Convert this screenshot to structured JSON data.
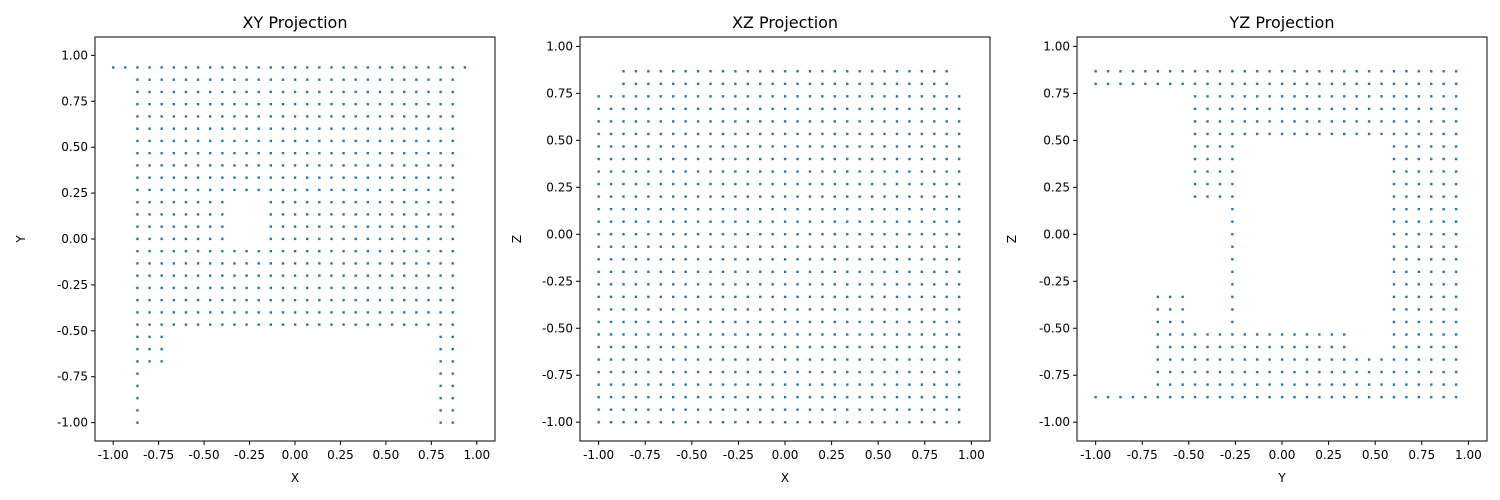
{
  "colors": {
    "marker": "#1f77b4",
    "axes": "#000000",
    "background": "#ffffff"
  },
  "chart_data": [
    {
      "type": "scatter",
      "title": "XY Projection",
      "xlabel": "X",
      "ylabel": "Y",
      "xlim": [
        -1.1,
        1.1
      ],
      "ylim": [
        -1.1,
        1.1
      ],
      "xticks": [
        "-1.00",
        "-0.75",
        "-0.50",
        "-0.25",
        "0.00",
        "0.25",
        "0.50",
        "0.75",
        "1.00"
      ],
      "yticks": [
        "-1.00",
        "-0.75",
        "-0.50",
        "-0.25",
        "0.00",
        "0.25",
        "0.50",
        "0.75",
        "1.00"
      ],
      "grid": false,
      "grid_spacing": 0.0667,
      "regions": [
        {
          "x": [
            -1.0,
            1.0
          ],
          "y": [
            0.87,
            1.0
          ]
        },
        {
          "x": [
            -0.87,
            0.87
          ],
          "y": [
            -0.53,
            0.87
          ]
        },
        {
          "x": [
            -0.93,
            -0.87
          ],
          "y": [
            -0.67,
            0.53
          ]
        },
        {
          "x": [
            0.87,
            0.93
          ],
          "y": [
            -0.93,
            0.53
          ]
        },
        {
          "x": [
            -0.87,
            -0.8
          ],
          "y": [
            -1.0,
            -0.53
          ]
        },
        {
          "x": [
            0.8,
            0.87
          ],
          "y": [
            -1.0,
            -0.53
          ]
        },
        {
          "x": [
            -0.8,
            -0.67
          ],
          "y": [
            -0.67,
            -0.53
          ]
        }
      ],
      "holes": [
        {
          "x": [
            -0.35,
            -0.15
          ],
          "y": [
            -0.05,
            0.25
          ]
        }
      ]
    },
    {
      "type": "scatter",
      "title": "XZ Projection",
      "xlabel": "X",
      "ylabel": "Z",
      "xlim": [
        -1.1,
        1.1
      ],
      "ylim": [
        -1.1,
        1.05
      ],
      "xticks": [
        "-1.00",
        "-0.75",
        "-0.50",
        "-0.25",
        "0.00",
        "0.25",
        "0.50",
        "0.75",
        "1.00"
      ],
      "yticks": [
        "-1.00",
        "-0.75",
        "-0.50",
        "-0.25",
        "0.00",
        "0.25",
        "0.50",
        "0.75",
        "1.00"
      ],
      "grid": false,
      "grid_spacing": 0.0667,
      "regions": [
        {
          "x": [
            -1.0,
            1.0
          ],
          "y": [
            -1.0,
            0.8
          ]
        },
        {
          "x": [
            -0.93,
            0.93
          ],
          "y": [
            0.8,
            0.87
          ]
        },
        {
          "x": [
            -0.93,
            -0.67
          ],
          "y": [
            0.93,
            0.93
          ]
        },
        {
          "x": [
            -0.4,
            -0.0
          ],
          "y": [
            0.93,
            0.93
          ]
        },
        {
          "x": [
            0.27,
            0.33
          ],
          "y": [
            0.93,
            0.93
          ]
        },
        {
          "x": [
            0.87,
            0.87
          ],
          "y": [
            0.93,
            0.93
          ]
        }
      ],
      "holes": []
    },
    {
      "type": "scatter",
      "title": "YZ Projection",
      "xlabel": "Y",
      "ylabel": "Z",
      "xlim": [
        -1.1,
        1.1
      ],
      "ylim": [
        -1.1,
        1.05
      ],
      "xticks": [
        "-1.00",
        "-0.75",
        "-0.50",
        "-0.25",
        "0.00",
        "0.25",
        "0.50",
        "0.75",
        "1.00"
      ],
      "yticks": [
        "-1.00",
        "-0.75",
        "-0.50",
        "-0.25",
        "0.00",
        "0.25",
        "0.50",
        "0.75",
        "1.00"
      ],
      "grid": false,
      "grid_spacing": 0.0667,
      "regions": [
        {
          "x": [
            -1.0,
            1.0
          ],
          "y": [
            0.8,
            0.87
          ]
        },
        {
          "x": [
            -1.0,
            1.0
          ],
          "y": [
            -0.87,
            -0.8
          ]
        },
        {
          "x": [
            -0.53,
            1.0
          ],
          "y": [
            -0.8,
            0.8
          ]
        },
        {
          "x": [
            -0.67,
            -0.53
          ],
          "y": [
            -0.93,
            -0.33
          ]
        },
        {
          "x": [
            -0.93,
            -0.67
          ],
          "y": [
            0.93,
            0.93
          ]
        }
      ],
      "holes": [
        {
          "x": [
            -0.2,
            0.4
          ],
          "y": [
            -0.5,
            0.5
          ]
        },
        {
          "x": [
            0.4,
            0.6
          ],
          "y": [
            -0.6,
            0.5
          ]
        },
        {
          "x": [
            -0.47,
            -0.27
          ],
          "y": [
            -0.5,
            0.2
          ]
        }
      ]
    }
  ]
}
